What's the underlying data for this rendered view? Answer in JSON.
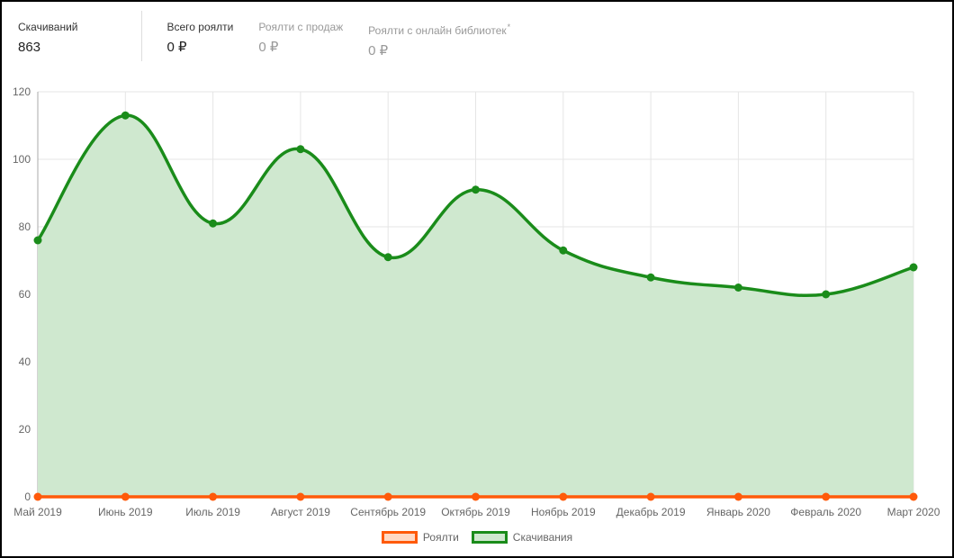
{
  "stats": [
    {
      "label": "Скачиваний",
      "value": "863",
      "muted": false
    },
    {
      "label": "Всего роялти",
      "value": "0 ₽",
      "muted": false
    },
    {
      "label": "Роялти с продаж",
      "value": "0 ₽",
      "muted": true
    },
    {
      "label": "Роялти с онлайн библиотек",
      "sup": "*",
      "value": "0 ₽",
      "muted": true
    }
  ],
  "chart_data": {
    "type": "area",
    "categories": [
      "Май 2019",
      "Июнь 2019",
      "Июль 2019",
      "Август 2019",
      "Сентябрь 2019",
      "Октябрь 2019",
      "Ноябрь 2019",
      "Декабрь 2019",
      "Январь 2020",
      "Февраль 2020",
      "Март 2020"
    ],
    "ylim": [
      0,
      120
    ],
    "yticks": [
      "0",
      "20",
      "40",
      "60",
      "80",
      "100",
      "120"
    ],
    "grid": true,
    "legend_position": "bottom",
    "series": [
      {
        "name": "Роялти",
        "values": [
          0,
          0,
          0,
          0,
          0,
          0,
          0,
          0,
          0,
          0,
          0
        ],
        "color": "#ff5a0a",
        "fill": "#ffd9c4"
      },
      {
        "name": "Скачивания",
        "values": [
          76,
          113,
          81,
          103,
          71,
          91,
          73,
          65,
          62,
          60,
          68
        ],
        "color": "#1a8c1a",
        "fill": "#cfe8cf"
      }
    ]
  }
}
